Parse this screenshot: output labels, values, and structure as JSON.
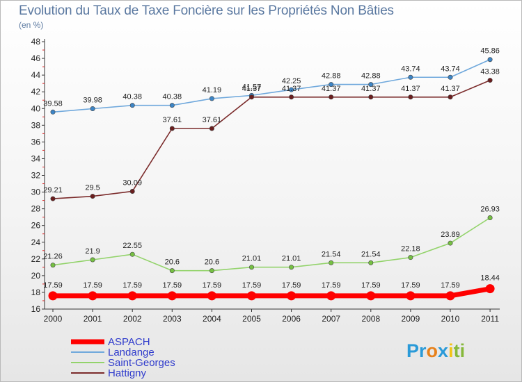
{
  "title": "Evolution du Taux de Taxe Foncière sur les Propriétés Non Bâties",
  "subtitle": "(en %)",
  "logo": {
    "text": "Proxiti",
    "letters": [
      {
        "ch": "P",
        "color": "#2a9ad8"
      },
      {
        "ch": "r",
        "color": "#2a9ad8"
      },
      {
        "ch": "o",
        "color": "#e7811b"
      },
      {
        "ch": "x",
        "color": "#2a9ad8"
      },
      {
        "ch": "i",
        "color": "#f3c416"
      },
      {
        "ch": "t",
        "color": "#86b83a"
      },
      {
        "ch": "i",
        "color": "#86b83a"
      }
    ]
  },
  "chart_data": {
    "type": "line",
    "x": [
      "2000",
      "2001",
      "2002",
      "2003",
      "2004",
      "2005",
      "2006",
      "2007",
      "2008",
      "2009",
      "2010",
      "2011"
    ],
    "ylim": [
      16,
      48
    ],
    "yticks": [
      16,
      18,
      20,
      22,
      24,
      26,
      28,
      30,
      32,
      34,
      36,
      38,
      40,
      42,
      44,
      46,
      48
    ],
    "grid": false,
    "legend_position": "bottom-left",
    "series": [
      {
        "name": "ASPACH",
        "color": "#ff0000",
        "marker_color": "#ff0000",
        "thick": true,
        "values": [
          17.59,
          17.59,
          17.59,
          17.59,
          17.59,
          17.59,
          17.59,
          17.59,
          17.59,
          17.59,
          17.59,
          18.44
        ],
        "labels": [
          "17.59",
          "17.59",
          "17.59",
          "17.59",
          "17.59",
          "17.59",
          "17.59",
          "17.59",
          "17.59",
          "17.59",
          "17.59",
          "18.44"
        ]
      },
      {
        "name": "Landange",
        "color": "#6fa8dc",
        "marker_color": "#3d85c6",
        "thick": false,
        "values": [
          39.58,
          39.98,
          40.38,
          40.38,
          41.19,
          41.57,
          42.25,
          42.88,
          42.88,
          43.74,
          43.74,
          45.86
        ],
        "labels": [
          "39.58",
          "39.98",
          "40.38",
          "40.38",
          "41.19",
          "41.57",
          "42.25",
          "42.88",
          "42.88",
          "43.74",
          "43.74",
          "45.86"
        ]
      },
      {
        "name": "Saint-Georges",
        "color": "#93d36b",
        "marker_color": "#76c043",
        "thick": false,
        "values": [
          21.26,
          21.9,
          22.55,
          20.6,
          20.6,
          21.01,
          21.01,
          21.54,
          21.54,
          22.18,
          23.89,
          26.93
        ],
        "labels": [
          "21.26",
          "21.9",
          "22.55",
          "20.6",
          "20.6",
          "21.01",
          "21.01",
          "21.54",
          "21.54",
          "22.18",
          "23.89",
          "26.93"
        ]
      },
      {
        "name": "Hattigny",
        "color": "#7b2b2b",
        "marker_color": "#6a1e1e",
        "thick": false,
        "values": [
          29.21,
          29.5,
          30.09,
          37.61,
          37.61,
          41.37,
          41.37,
          41.37,
          41.37,
          41.37,
          41.37,
          43.38
        ],
        "labels": [
          "29.21",
          "29.5",
          "30.09",
          "37.61",
          "37.61",
          "41.37",
          "41.37",
          "41.37",
          "41.37",
          "41.37",
          "41.37",
          "43.38"
        ]
      }
    ]
  }
}
